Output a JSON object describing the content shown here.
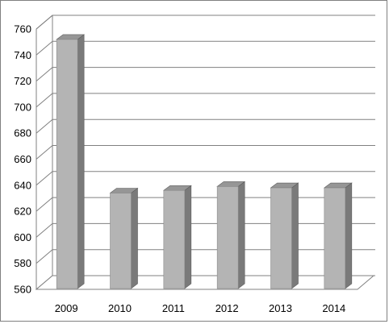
{
  "chart_data": {
    "type": "bar",
    "categories": [
      "2009",
      "2010",
      "2011",
      "2012",
      "2013",
      "2014"
    ],
    "values": [
      752,
      634,
      636,
      639,
      638,
      638
    ],
    "title": "",
    "xlabel": "",
    "ylabel": "",
    "ylim": [
      560,
      760
    ],
    "yticks": [
      "560",
      "580",
      "600",
      "620",
      "640",
      "660",
      "680",
      "700",
      "720",
      "740",
      "760"
    ],
    "grid": true,
    "legend": "none",
    "style": "3d-column",
    "colors": {
      "bar_front": "#b4b4b4",
      "bar_side": "#7a7a7a",
      "bar_top": "#969696",
      "grid": "#808080",
      "wall": "#ffffff",
      "frame": "#808080"
    }
  }
}
